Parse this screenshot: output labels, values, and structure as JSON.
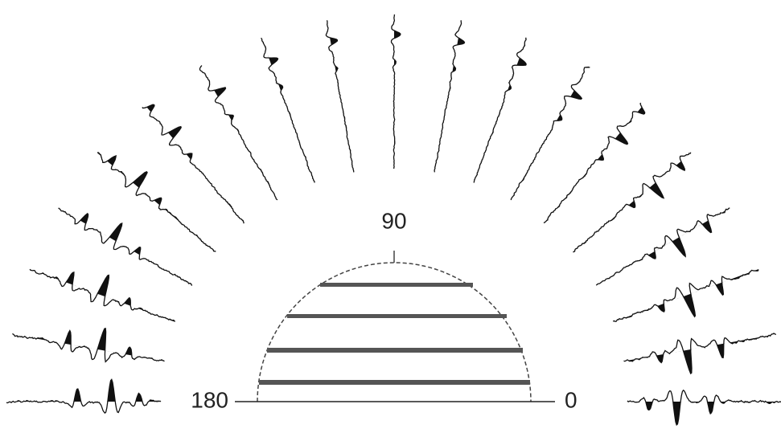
{
  "labels": {
    "top": "90",
    "left": "180",
    "right": "0"
  }
}
